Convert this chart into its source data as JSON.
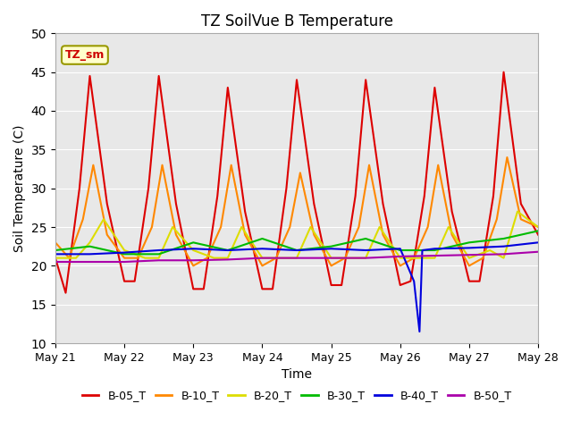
{
  "title": "TZ SoilVue B Temperature",
  "xlabel": "Time",
  "ylabel": "Soil Temperature (C)",
  "ylim": [
    10,
    50
  ],
  "background_color": "#e8e8e8",
  "annotation_label": "TZ_sm",
  "annotation_color": "#cc0000",
  "annotation_bg": "#ffffcc",
  "series": {
    "B-05_T": {
      "color": "#dd0000",
      "data_x": [
        0,
        0.15,
        0.35,
        0.5,
        0.75,
        1.0,
        1.15,
        1.35,
        1.5,
        1.75,
        2.0,
        2.15,
        2.35,
        2.5,
        2.75,
        3.0,
        3.15,
        3.35,
        3.5,
        3.75,
        4.0,
        4.15,
        4.35,
        4.5,
        4.75,
        5.0,
        5.15,
        5.35,
        5.5,
        5.75,
        6.0,
        6.15,
        6.35,
        6.5,
        6.75,
        7.0
      ],
      "data_y": [
        21,
        16.5,
        30,
        44.5,
        28,
        18,
        18,
        30,
        44.5,
        28,
        17,
        17,
        29,
        43,
        27,
        17,
        17,
        30,
        44,
        28,
        17.5,
        17.5,
        29,
        44,
        28,
        17.5,
        18,
        29,
        43,
        27,
        18,
        18,
        29,
        45,
        28,
        24
      ]
    },
    "B-10_T": {
      "color": "#ff8800",
      "data_x": [
        0,
        0.2,
        0.4,
        0.55,
        0.75,
        1.0,
        1.2,
        1.4,
        1.55,
        1.75,
        2.0,
        2.2,
        2.4,
        2.55,
        2.75,
        3.0,
        3.2,
        3.4,
        3.55,
        3.75,
        4.0,
        4.2,
        4.4,
        4.55,
        4.75,
        5.0,
        5.2,
        5.4,
        5.55,
        5.75,
        6.0,
        6.2,
        6.4,
        6.55,
        6.75,
        7.0
      ],
      "data_y": [
        23,
        21,
        26,
        33,
        24,
        21,
        21,
        25,
        33,
        24,
        20,
        21,
        25,
        33,
        24,
        20,
        21,
        25,
        32,
        24,
        20,
        21,
        25,
        33,
        24,
        20,
        21,
        25,
        33,
        24,
        20,
        21,
        26,
        34,
        26,
        25
      ]
    },
    "B-20_T": {
      "color": "#dddd00",
      "data_x": [
        0,
        0.3,
        0.5,
        0.7,
        1.0,
        1.3,
        1.5,
        1.7,
        2.0,
        2.3,
        2.5,
        2.7,
        3.0,
        3.3,
        3.5,
        3.7,
        4.0,
        4.3,
        4.5,
        4.7,
        5.0,
        5.3,
        5.5,
        5.7,
        6.0,
        6.3,
        6.5,
        6.7,
        7.0
      ],
      "data_y": [
        21,
        21,
        23,
        26,
        22,
        21,
        21,
        25,
        22,
        21,
        21,
        25,
        21,
        21,
        21,
        25,
        21,
        21,
        21,
        25,
        21,
        21,
        21,
        25,
        21,
        22,
        21,
        27,
        25
      ]
    },
    "B-30_T": {
      "color": "#00bb00",
      "data_x": [
        0,
        0.5,
        1.0,
        1.5,
        2.0,
        2.5,
        3.0,
        3.5,
        4.0,
        4.5,
        5.0,
        5.5,
        6.0,
        6.5,
        7.0
      ],
      "data_y": [
        22,
        22.5,
        21.5,
        21.5,
        23,
        22,
        23.5,
        22,
        22.5,
        23.5,
        22,
        22,
        23,
        23.5,
        24.5
      ]
    },
    "B-40_T": {
      "color": "#0000dd",
      "data_x": [
        0,
        0.5,
        1.0,
        1.5,
        2.0,
        2.5,
        3.0,
        3.5,
        4.0,
        4.5,
        5.0,
        5.2,
        5.28,
        5.32,
        5.5,
        6.0,
        6.5,
        7.0
      ],
      "data_y": [
        21.5,
        21.5,
        21.7,
        22,
        22.2,
        22,
        22.2,
        22,
        22.2,
        22,
        22.2,
        18,
        11.5,
        22,
        22.2,
        22.3,
        22.5,
        23
      ]
    },
    "B-50_T": {
      "color": "#aa00aa",
      "data_x": [
        0,
        0.5,
        1.0,
        1.5,
        2.0,
        2.5,
        3.0,
        3.5,
        4.0,
        4.5,
        5.0,
        5.5,
        6.0,
        6.5,
        7.0
      ],
      "data_y": [
        20.5,
        20.5,
        20.5,
        20.7,
        20.7,
        20.8,
        21,
        21,
        21,
        21,
        21.2,
        21.3,
        21.4,
        21.5,
        21.8
      ]
    }
  },
  "xtick_positions": [
    0,
    1,
    2,
    3,
    4,
    5,
    6,
    7
  ],
  "xtick_labels": [
    "May 21",
    "May 22",
    "May 23",
    "May 24",
    "May 25",
    "May 26",
    "May 27",
    "May 28"
  ],
  "ytick_positions": [
    10,
    15,
    20,
    25,
    30,
    35,
    40,
    45,
    50
  ],
  "legend_entries": [
    "B-05_T",
    "B-10_T",
    "B-20_T",
    "B-30_T",
    "B-40_T",
    "B-50_T"
  ],
  "legend_colors": [
    "#dd0000",
    "#ff8800",
    "#dddd00",
    "#00bb00",
    "#0000dd",
    "#aa00aa"
  ]
}
